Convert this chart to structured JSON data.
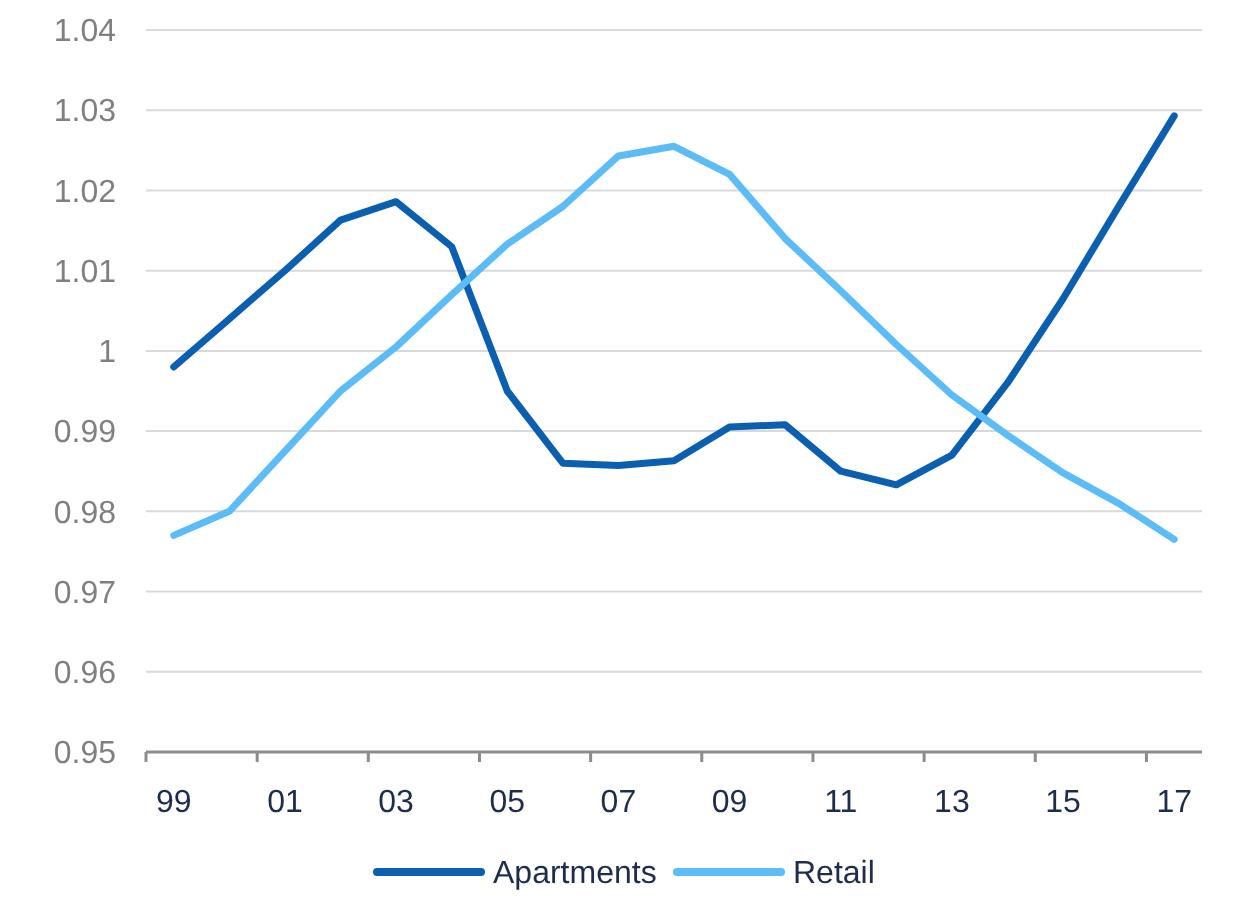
{
  "chart_data": {
    "type": "line",
    "categories": [
      "99",
      null,
      "01",
      null,
      "03",
      null,
      "05",
      null,
      "07",
      null,
      "09",
      null,
      "11",
      null,
      "13",
      null,
      "15",
      null,
      "17"
    ],
    "series": [
      {
        "name": "Apartments",
        "color": "#0b5fb0",
        "values": [
          0.998,
          1.004,
          1.01,
          1.0163,
          1.0186,
          1.013,
          0.995,
          0.986,
          0.9857,
          0.9863,
          0.9905,
          0.9908,
          0.985,
          0.9833,
          0.987,
          0.996,
          1.0065,
          1.018,
          1.0293
        ]
      },
      {
        "name": "Retail",
        "color": "#5bbcf8",
        "values": [
          0.977,
          0.98,
          0.9875,
          0.995,
          1.0005,
          1.007,
          1.0133,
          1.018,
          1.0243,
          1.0255,
          1.022,
          1.014,
          1.0075,
          1.0008,
          0.9945,
          0.9895,
          0.9848,
          0.981,
          0.9765
        ]
      }
    ],
    "ylim": [
      0.95,
      1.04
    ],
    "yticks": [
      0.95,
      0.96,
      0.97,
      0.98,
      0.99,
      {
        "value": 1,
        "label": "1"
      },
      1.01,
      1.02,
      1.03,
      1.04
    ],
    "grid": "y",
    "legend": "bottom",
    "marker": "none",
    "line_style": "solid"
  }
}
